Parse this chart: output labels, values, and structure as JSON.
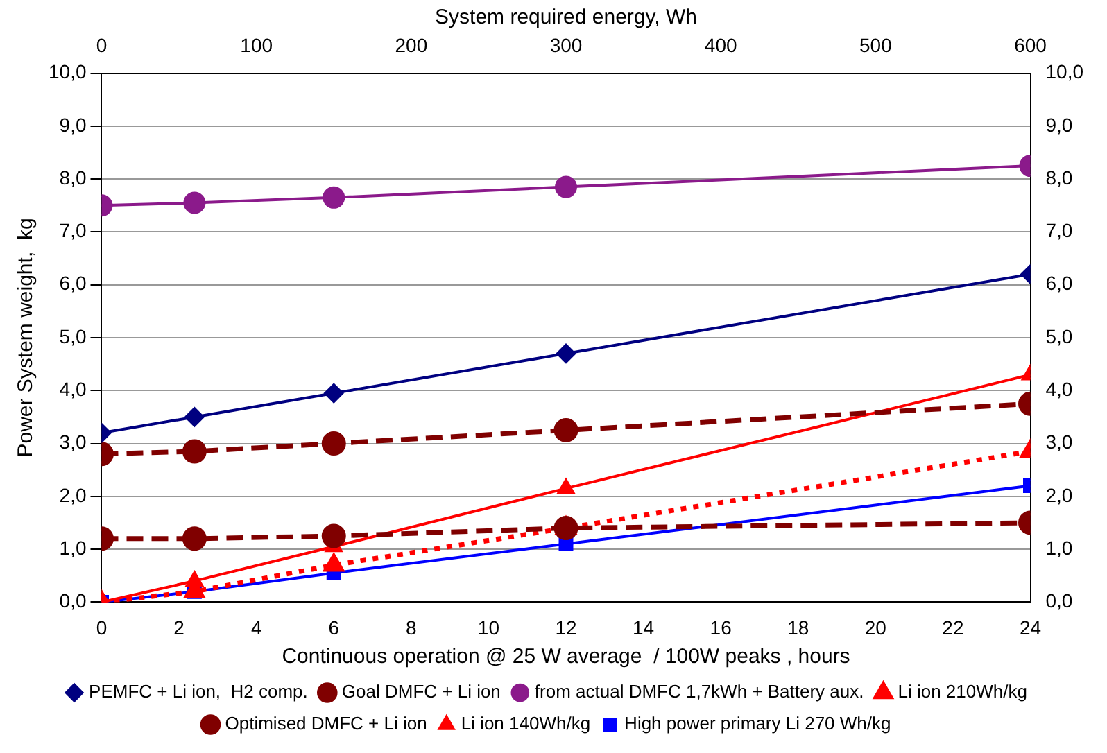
{
  "chart_data": {
    "type": "line",
    "xlabel": "Continuous operation @ 25 W average  / 100W peaks , hours",
    "x2label": "System required energy, Wh",
    "ylabel": "Power System weight,  kg",
    "x": [
      0,
      2.4,
      6,
      12,
      24
    ],
    "xlim": [
      0,
      24
    ],
    "xticks": [
      0,
      2,
      4,
      6,
      8,
      10,
      12,
      14,
      16,
      18,
      20,
      22,
      24
    ],
    "x2lim": [
      0,
      600
    ],
    "x2ticks": [
      0,
      100,
      200,
      300,
      400,
      500,
      600
    ],
    "ylim": [
      0,
      10
    ],
    "yticks": [
      {
        "value": 0,
        "label": "0,0"
      },
      {
        "value": 1,
        "label": "1,0"
      },
      {
        "value": 2,
        "label": "2,0"
      },
      {
        "value": 3,
        "label": "3,0"
      },
      {
        "value": 4,
        "label": "4,0"
      },
      {
        "value": 5,
        "label": "5,0"
      },
      {
        "value": 6,
        "label": "6,0"
      },
      {
        "value": 7,
        "label": "7,0"
      },
      {
        "value": 8,
        "label": "8,0"
      },
      {
        "value": 9,
        "label": "9,0"
      },
      {
        "value": 10,
        "label": "10,0"
      }
    ],
    "y2lim": [
      0,
      10
    ],
    "y2ticks": [
      {
        "value": 0,
        "label": "0,0"
      },
      {
        "value": 1,
        "label": "1,0"
      },
      {
        "value": 2,
        "label": "2,0"
      },
      {
        "value": 3,
        "label": "3,0"
      },
      {
        "value": 4,
        "label": "4,0"
      },
      {
        "value": 5,
        "label": "5,0"
      },
      {
        "value": 6,
        "label": "6,0"
      },
      {
        "value": 7,
        "label": "7,0"
      },
      {
        "value": 8,
        "label": "8,0"
      },
      {
        "value": 9,
        "label": "9,0"
      },
      {
        "value": 10,
        "label": "10,0"
      }
    ],
    "grid": "y",
    "legend": "bottom",
    "series": [
      {
        "name": "PEMFC + Li ion,  H2 comp.",
        "color": "#000080",
        "marker": "diamond",
        "line_style": "solid",
        "values": [
          3.2,
          3.5,
          3.95,
          4.7,
          6.2
        ]
      },
      {
        "name": "Goal DMFC + Li ion",
        "color": "#800000",
        "marker": "circle",
        "line_style": "dashed",
        "values": [
          1.2,
          1.2,
          1.25,
          1.4,
          1.5
        ]
      },
      {
        "name": "from actual DMFC 1,7kWh + Battery aux.",
        "color": "#8b1a8b",
        "marker": "circle",
        "line_style": "solid",
        "values": [
          7.5,
          7.55,
          7.65,
          7.85,
          8.25
        ]
      },
      {
        "name": "Li ion 210Wh/kg",
        "color": "#ff0000",
        "marker": "triangle",
        "line_style": "dotted",
        "values": [
          0,
          0.2,
          0.7,
          1.4,
          2.85
        ]
      },
      {
        "name": "Optimised DMFC + Li ion",
        "color": "#800000",
        "marker": "circle",
        "line_style": "dashed",
        "values": [
          2.8,
          2.85,
          3.0,
          3.25,
          3.75
        ]
      },
      {
        "name": "Li ion 140Wh/kg",
        "color": "#ff0000",
        "marker": "triangle",
        "line_style": "solid",
        "values": [
          0,
          0.4,
          1.05,
          2.15,
          4.3
        ]
      },
      {
        "name": "High power primary Li 270 Wh/kg",
        "color": "#0000ff",
        "marker": "square",
        "line_style": "solid",
        "values": [
          0,
          0.2,
          0.55,
          1.1,
          2.2
        ]
      }
    ]
  }
}
